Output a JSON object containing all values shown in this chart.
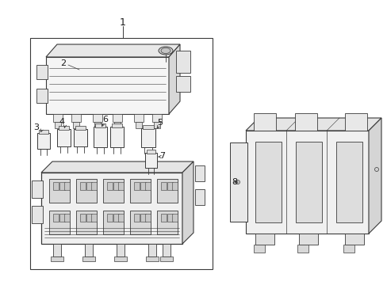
{
  "background_color": "#ffffff",
  "line_color": "#3a3a3a",
  "label_color": "#1a1a1a",
  "figsize": [
    4.89,
    3.6
  ],
  "dpi": 100,
  "lw_main": 0.7,
  "lw_thin": 0.4,
  "lw_thick": 1.0
}
